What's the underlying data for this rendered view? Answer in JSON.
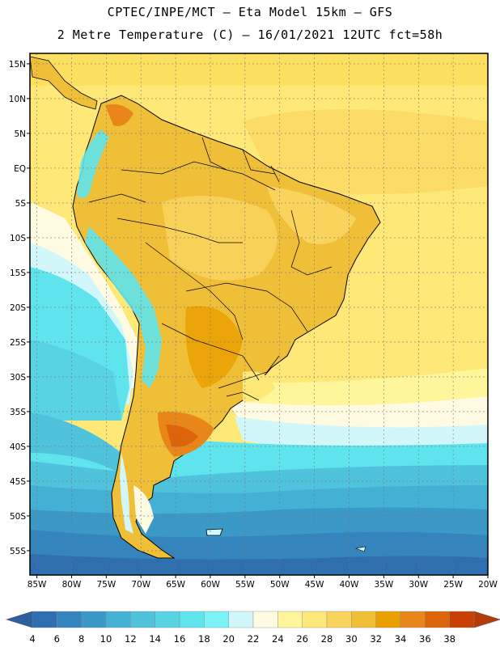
{
  "header": {
    "line1": "CPTEC/INPE/MCT –  Eta Model 15km – GFS",
    "line2": "2 Metre Temperature (C) – 16/01/2021 12UTC fct=58h"
  },
  "map": {
    "lat_labels": [
      "15N",
      "10N",
      "5N",
      "EQ",
      "5S",
      "10S",
      "15S",
      "20S",
      "25S",
      "30S",
      "35S",
      "40S",
      "45S",
      "50S",
      "55S"
    ],
    "lat_values": [
      15,
      10,
      5,
      0,
      -5,
      -10,
      -15,
      -20,
      -25,
      -30,
      -35,
      -40,
      -45,
      -50,
      -55
    ],
    "lon_labels": [
      "85W",
      "80W",
      "75W",
      "70W",
      "65W",
      "60W",
      "55W",
      "50W",
      "45W",
      "40W",
      "35W",
      "30W",
      "25W",
      "20W"
    ],
    "lon_values": [
      -85,
      -80,
      -75,
      -70,
      -65,
      -60,
      -55,
      -50,
      -45,
      -40,
      -35,
      -30,
      -25,
      -20
    ],
    "lat_range": [
      -58.5,
      16.5
    ],
    "lon_range": [
      -86,
      -20
    ]
  },
  "colorbar": {
    "labels": [
      "4",
      "6",
      "8",
      "10",
      "12",
      "14",
      "16",
      "18",
      "20",
      "22",
      "24",
      "26",
      "28",
      "30",
      "32",
      "34",
      "36",
      "38"
    ],
    "colors": [
      "#2f6fb0",
      "#3484bd",
      "#3b99c8",
      "#44b0d4",
      "#4fc3dc",
      "#57d3e4",
      "#5fe3ec",
      "#7af2f6",
      "#d2f7fa",
      "#fffbe3",
      "#fff59a",
      "#fde878",
      "#f8d45c",
      "#f0bf38",
      "#eba000",
      "#e8861a",
      "#dd6408",
      "#c84104"
    ],
    "low_color": "#2c5f9e",
    "high_color": "#b83a08"
  }
}
